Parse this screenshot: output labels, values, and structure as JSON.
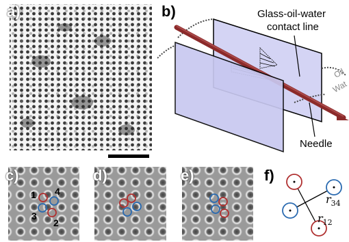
{
  "labels": {
    "a": "a)",
    "b": "b)",
    "c": "c)",
    "d": "d)",
    "e": "e)",
    "f": "f)"
  },
  "panel_b": {
    "contact_line_line1": "Glass-oil-water",
    "contact_line_line2": "contact line",
    "needle": "Needle",
    "oil": "Oil",
    "water": "Wat"
  },
  "panel_c": {
    "particle_numbers": [
      "1",
      "2",
      "3",
      "4"
    ]
  },
  "panel_f": {
    "r34": "r",
    "r34_sub": "34",
    "r12": "r",
    "r12_sub": "12"
  },
  "colors": {
    "red_circle": "#b03030",
    "blue_circle": "#2a6ab0",
    "glass_face": "#c8c8f0",
    "needle": "#8b2a2a",
    "scale_bar": "#000000"
  }
}
